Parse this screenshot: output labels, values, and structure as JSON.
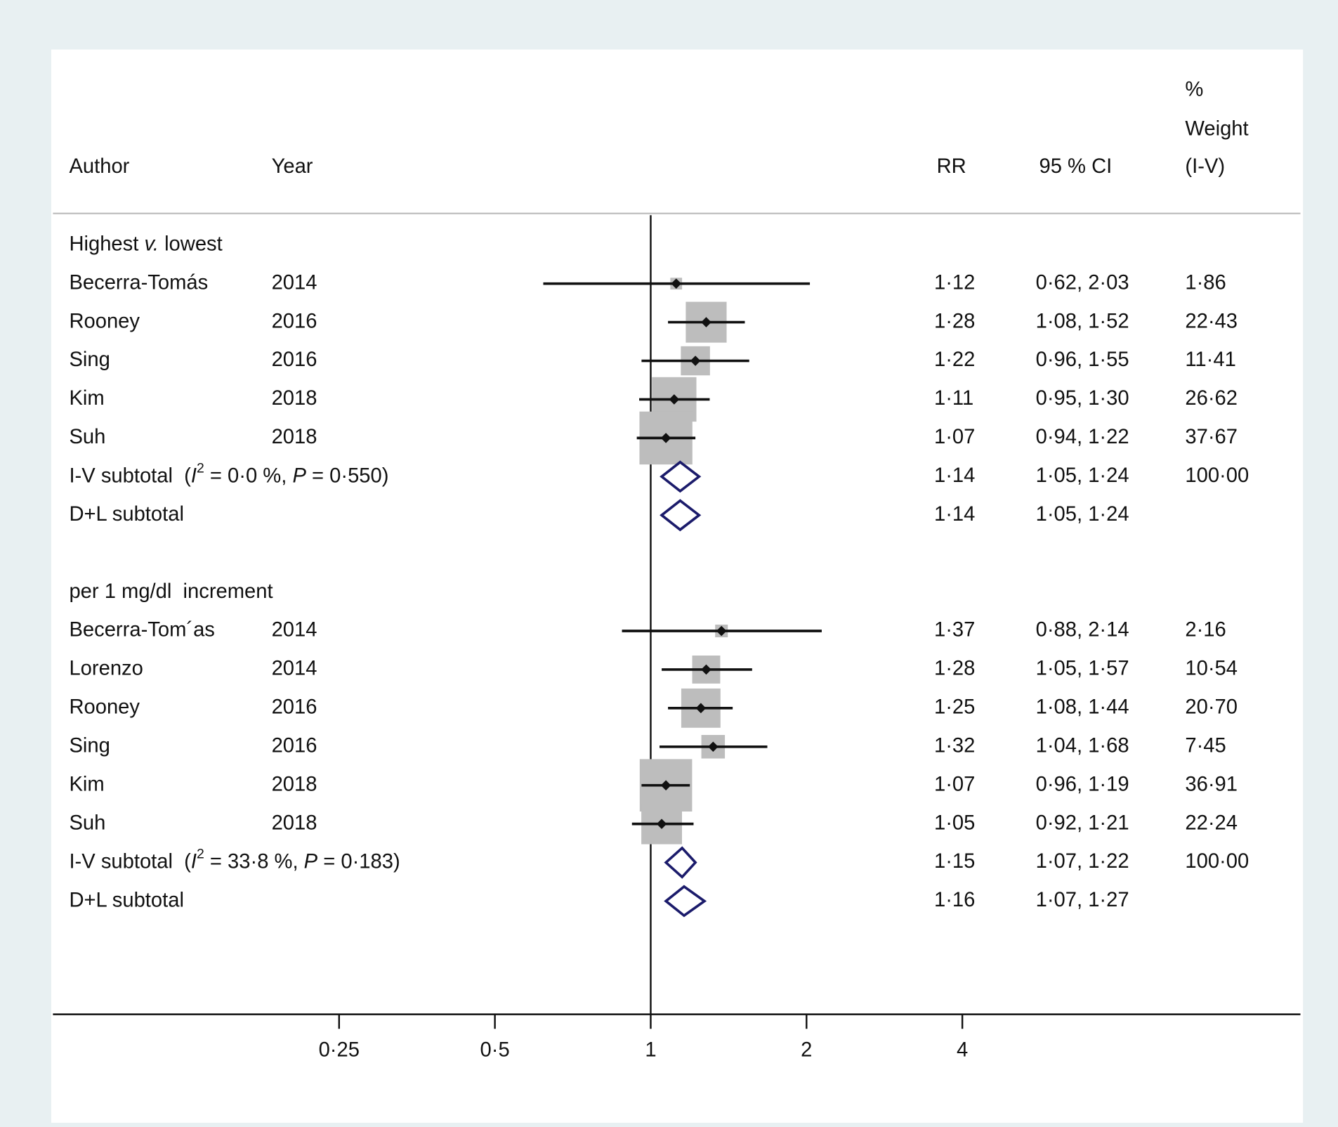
{
  "chart_data": {
    "type": "forest",
    "header": {
      "author": "Author",
      "year": "Year",
      "rr": "RR",
      "ci": "95 % CI",
      "weight": [
        "%",
        "Weight",
        "(I-V)"
      ]
    },
    "xscale": "log",
    "xlim": [
      0.07,
      18
    ],
    "xticks": [
      {
        "value": 0.25,
        "label": "0·25"
      },
      {
        "value": 0.5,
        "label": "0·5"
      },
      1,
      2,
      4
    ],
    "reference_line": 1,
    "square_color": "#bdbdbd",
    "diamond_color": "#1b1b6b",
    "groups": [
      {
        "title_parts": [
          {
            "text": "Highest "
          },
          {
            "text": "v.",
            "style": "italic"
          },
          {
            "text": " lowest"
          }
        ],
        "studies": [
          {
            "author": "Becerra-Tomás",
            "year": "2014",
            "rr": 1.12,
            "rr_label": "1·12",
            "ci_low": 0.62,
            "ci_high": 2.03,
            "ci_label": "0·62, 2·03",
            "weight": 1.86,
            "weight_label": "1·86"
          },
          {
            "author": "Rooney",
            "year": "2016",
            "rr": 1.28,
            "rr_label": "1·28",
            "ci_low": 1.08,
            "ci_high": 1.52,
            "ci_label": "1·08, 1·52",
            "weight": 22.43,
            "weight_label": "22·43"
          },
          {
            "author": "Sing",
            "year": "2016",
            "rr": 1.22,
            "rr_label": "1·22",
            "ci_low": 0.96,
            "ci_high": 1.55,
            "ci_label": "0·96, 1·55",
            "weight": 11.41,
            "weight_label": "11·41"
          },
          {
            "author": "Kim",
            "year": "2018",
            "rr": 1.11,
            "rr_label": "1·11",
            "ci_low": 0.95,
            "ci_high": 1.3,
            "ci_label": "0·95, 1·30",
            "weight": 26.62,
            "weight_label": "26·62"
          },
          {
            "author": "Suh",
            "year": "2018",
            "rr": 1.07,
            "rr_label": "1·07",
            "ci_low": 0.94,
            "ci_high": 1.22,
            "ci_label": "0·94, 1·22",
            "weight": 37.67,
            "weight_label": "37·67"
          }
        ],
        "subtotals": [
          {
            "label_parts": [
              {
                "text": "I-V subtotal  ("
              },
              {
                "text": "I",
                "style": "italic"
              },
              {
                "text": "2",
                "style": "superscript"
              },
              {
                "text": " = 0·0 %, "
              },
              {
                "text": "P",
                "style": "italic"
              },
              {
                "text": " = 0·550)"
              }
            ],
            "rr": 1.14,
            "rr_label": "1·14",
            "ci_low": 1.05,
            "ci_high": 1.24,
            "ci_label": "1·05, 1·24",
            "weight": 100,
            "weight_label": "100·00"
          },
          {
            "label_parts": [
              {
                "text": "D+L subtotal"
              }
            ],
            "rr": 1.14,
            "rr_label": "1·14",
            "ci_low": 1.05,
            "ci_high": 1.24,
            "ci_label": "1·05, 1·24"
          }
        ]
      },
      {
        "title_parts": [
          {
            "text": "per 1 mg/dl  increment"
          }
        ],
        "studies": [
          {
            "author": "Becerra-Tom´as",
            "year": "2014",
            "rr": 1.37,
            "rr_label": "1·37",
            "ci_low": 0.88,
            "ci_high": 2.14,
            "ci_label": "0·88, 2·14",
            "weight": 2.16,
            "weight_label": "2·16"
          },
          {
            "author": "Lorenzo",
            "year": "2014",
            "rr": 1.28,
            "rr_label": "1·28",
            "ci_low": 1.05,
            "ci_high": 1.57,
            "ci_label": "1·05, 1·57",
            "weight": 10.54,
            "weight_label": "10·54"
          },
          {
            "author": "Rooney",
            "year": "2016",
            "rr": 1.25,
            "rr_label": "1·25",
            "ci_low": 1.08,
            "ci_high": 1.44,
            "ci_label": "1·08, 1·44",
            "weight": 20.7,
            "weight_label": "20·70"
          },
          {
            "author": "Sing",
            "year": "2016",
            "rr": 1.32,
            "rr_label": "1·32",
            "ci_low": 1.04,
            "ci_high": 1.68,
            "ci_label": "1·04, 1·68",
            "weight": 7.45,
            "weight_label": "7·45"
          },
          {
            "author": "Kim",
            "year": "2018",
            "rr": 1.07,
            "rr_label": "1·07",
            "ci_low": 0.96,
            "ci_high": 1.19,
            "ci_label": "0·96, 1·19",
            "weight": 36.91,
            "weight_label": "36·91"
          },
          {
            "author": "Suh",
            "year": "2018",
            "rr": 1.05,
            "rr_label": "1·05",
            "ci_low": 0.92,
            "ci_high": 1.21,
            "ci_label": "0·92, 1·21",
            "weight": 22.24,
            "weight_label": "22·24"
          }
        ],
        "subtotals": [
          {
            "label_parts": [
              {
                "text": "I-V subtotal  ("
              },
              {
                "text": "I",
                "style": "italic"
              },
              {
                "text": "2",
                "style": "superscript"
              },
              {
                "text": " = 33·8 %, "
              },
              {
                "text": "P",
                "style": "italic"
              },
              {
                "text": " = 0·183)"
              }
            ],
            "rr": 1.15,
            "rr_label": "1·15",
            "ci_low": 1.07,
            "ci_high": 1.22,
            "ci_label": "1·07, 1·22",
            "weight": 100,
            "weight_label": "100·00"
          },
          {
            "label_parts": [
              {
                "text": "D+L subtotal"
              }
            ],
            "rr": 1.16,
            "rr_label": "1·16",
            "ci_low": 1.07,
            "ci_high": 1.27,
            "ci_label": "1·07, 1·27"
          }
        ]
      }
    ]
  }
}
